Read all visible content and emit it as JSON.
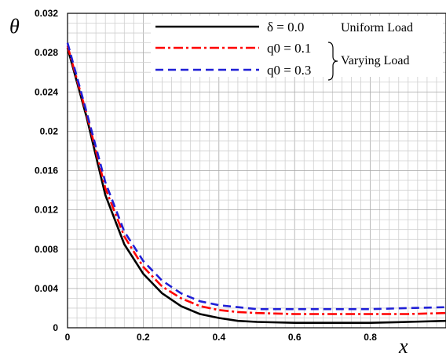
{
  "chart_data": {
    "type": "line",
    "xlabel": "x",
    "ylabel": "θ",
    "xlim": [
      0,
      1
    ],
    "ylim": [
      0,
      0.032
    ],
    "x_ticks": [
      "0",
      "0.2",
      "0.4",
      "0.6",
      "0.8"
    ],
    "y_ticks": [
      "0",
      "0.004",
      "0.008",
      "0.012",
      "0.016",
      "0.02",
      "0.024",
      "0.028",
      "0.032"
    ],
    "grid": true,
    "legend_position": "top-right",
    "legend_group_labels": [
      "Uniform Load",
      "Varying Load"
    ],
    "series": [
      {
        "name": "δ = 0.0",
        "color": "#000000",
        "style": "solid",
        "x": [
          0,
          0.05,
          0.1,
          0.15,
          0.2,
          0.25,
          0.3,
          0.35,
          0.4,
          0.45,
          0.5,
          0.6,
          0.7,
          0.8,
          0.9,
          1.0
        ],
        "y": [
          0.0285,
          0.0215,
          0.0135,
          0.0085,
          0.0055,
          0.0035,
          0.0022,
          0.0014,
          0.001,
          0.0007,
          0.0006,
          0.0005,
          0.0005,
          0.0005,
          0.0006,
          0.0007
        ]
      },
      {
        "name": "q0 = 0.1",
        "color": "#ff0000",
        "style": "dash-dot",
        "x": [
          0,
          0.05,
          0.1,
          0.15,
          0.2,
          0.25,
          0.3,
          0.35,
          0.4,
          0.45,
          0.5,
          0.6,
          0.7,
          0.8,
          0.9,
          1.0
        ],
        "y": [
          0.0287,
          0.0218,
          0.0142,
          0.0093,
          0.0062,
          0.0042,
          0.003,
          0.0022,
          0.0018,
          0.0016,
          0.0015,
          0.0014,
          0.0014,
          0.0014,
          0.0014,
          0.0015
        ]
      },
      {
        "name": "q0 = 0.3",
        "color": "#1f1fd6",
        "style": "dashed",
        "x": [
          0,
          0.05,
          0.1,
          0.15,
          0.2,
          0.25,
          0.3,
          0.35,
          0.4,
          0.45,
          0.5,
          0.6,
          0.7,
          0.8,
          0.9,
          1.0
        ],
        "y": [
          0.029,
          0.022,
          0.0148,
          0.0098,
          0.0068,
          0.0048,
          0.0035,
          0.0027,
          0.0023,
          0.0021,
          0.0019,
          0.0019,
          0.0019,
          0.0019,
          0.002,
          0.0021
        ]
      }
    ],
    "legend": [
      {
        "math": "δ = 0.0",
        "group": "Uniform Load"
      },
      {
        "math": "q0 = 0.1",
        "group": "Varying Load"
      },
      {
        "math": "q0 = 0.3",
        "group": "Varying Load"
      }
    ]
  }
}
